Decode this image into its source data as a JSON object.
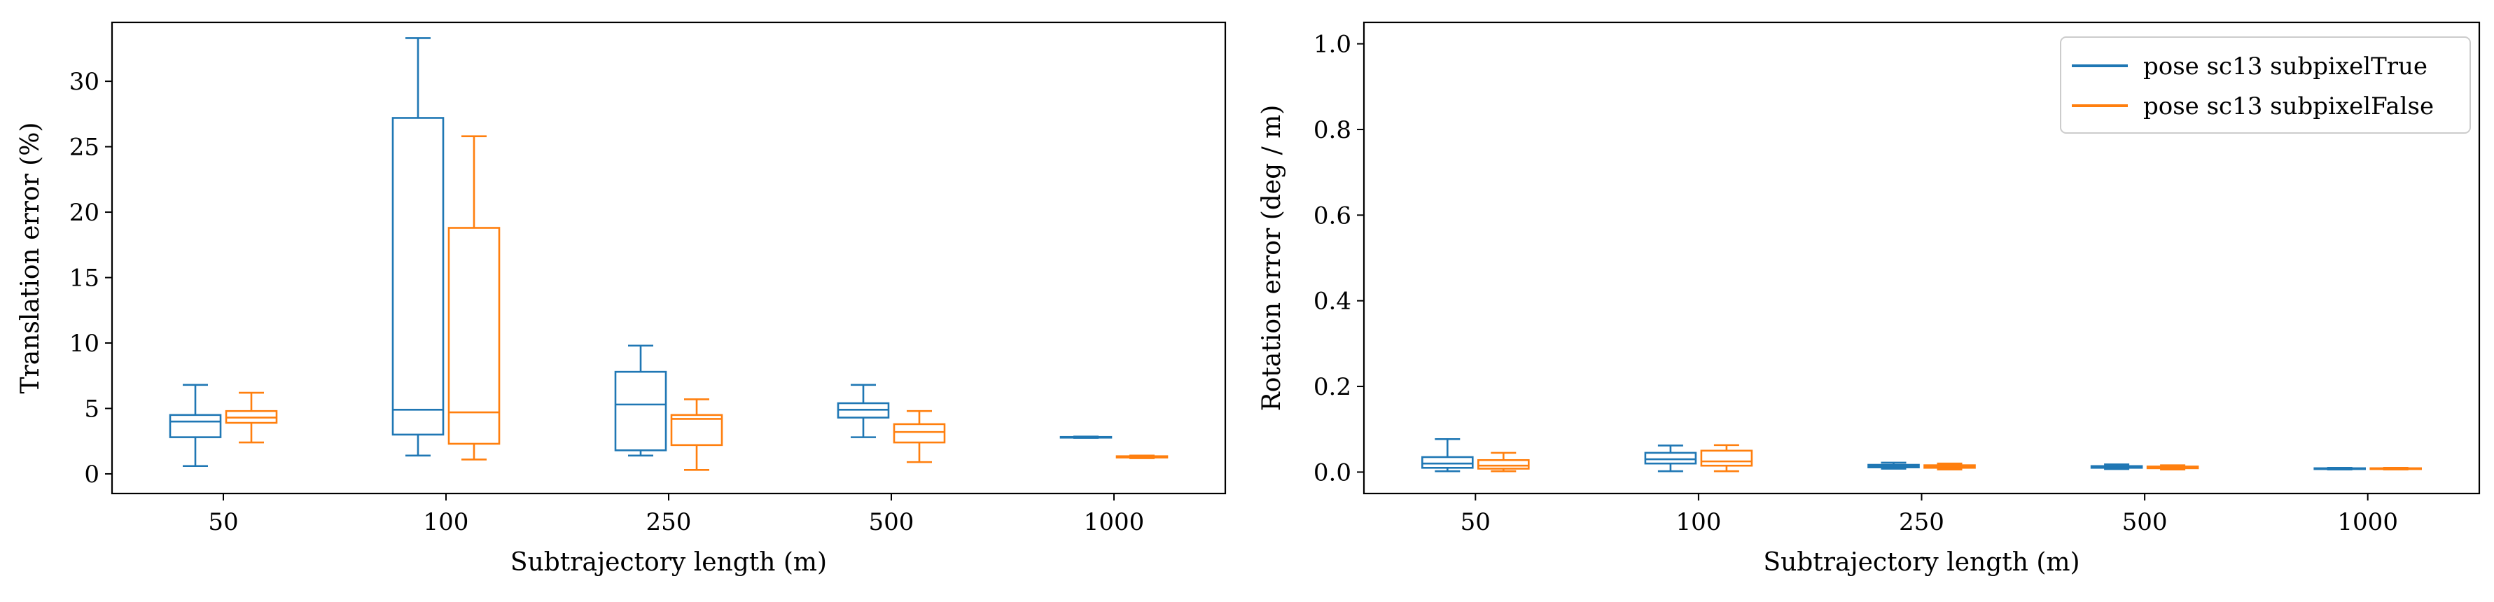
{
  "chart_data": [
    {
      "type": "box",
      "xlabel": "Subtrajectory length (m)",
      "ylabel": "Translation error (%)",
      "ylim": [
        -1.5,
        34.5
      ],
      "yticks": [
        0,
        5,
        10,
        15,
        20,
        25,
        30
      ],
      "categories": [
        "50",
        "100",
        "250",
        "500",
        "1000"
      ],
      "series": [
        {
          "name": "pose sc13 subpixelTrue",
          "color": "#1f77b4",
          "boxes": [
            {
              "whislo": 0.6,
              "q1": 2.8,
              "med": 4.0,
              "q3": 4.5,
              "whishi": 6.8
            },
            {
              "whislo": 1.4,
              "q1": 3.0,
              "med": 4.9,
              "q3": 27.2,
              "whishi": 33.3
            },
            {
              "whislo": 1.4,
              "q1": 1.8,
              "med": 5.3,
              "q3": 7.8,
              "whishi": 9.8
            },
            {
              "whislo": 2.8,
              "q1": 4.3,
              "med": 4.9,
              "q3": 5.4,
              "whishi": 6.8
            },
            {
              "whislo": 2.75,
              "q1": 2.78,
              "med": 2.8,
              "q3": 2.82,
              "whishi": 2.85
            }
          ]
        },
        {
          "name": "pose sc13 subpixelFalse",
          "color": "#ff7f0e",
          "boxes": [
            {
              "whislo": 2.4,
              "q1": 3.9,
              "med": 4.3,
              "q3": 4.8,
              "whishi": 6.2
            },
            {
              "whislo": 1.1,
              "q1": 2.3,
              "med": 4.7,
              "q3": 18.8,
              "whishi": 25.8
            },
            {
              "whislo": 0.3,
              "q1": 2.2,
              "med": 4.2,
              "q3": 4.5,
              "whishi": 5.7
            },
            {
              "whislo": 0.9,
              "q1": 2.4,
              "med": 3.2,
              "q3": 3.8,
              "whishi": 4.8
            },
            {
              "whislo": 1.2,
              "q1": 1.25,
              "med": 1.3,
              "q3": 1.35,
              "whishi": 1.4
            }
          ]
        }
      ]
    },
    {
      "type": "box",
      "xlabel": "Subtrajectory length (m)",
      "ylabel": "Rotation error (deg / m)",
      "ylim": [
        -0.05,
        1.05
      ],
      "yticks": [
        0.0,
        0.2,
        0.4,
        0.6,
        0.8,
        1.0
      ],
      "categories": [
        "50",
        "100",
        "250",
        "500",
        "1000"
      ],
      "legend": {
        "placement": "top-right",
        "entries": [
          "pose sc13 subpixelTrue",
          "pose sc13 subpixelFalse"
        ]
      },
      "series": [
        {
          "name": "pose sc13 subpixelTrue",
          "color": "#1f77b4",
          "boxes": [
            {
              "whislo": 0.002,
              "q1": 0.01,
              "med": 0.02,
              "q3": 0.035,
              "whishi": 0.077
            },
            {
              "whislo": 0.002,
              "q1": 0.02,
              "med": 0.03,
              "q3": 0.045,
              "whishi": 0.062
            },
            {
              "whislo": 0.008,
              "q1": 0.011,
              "med": 0.014,
              "q3": 0.017,
              "whishi": 0.022
            },
            {
              "whislo": 0.007,
              "q1": 0.01,
              "med": 0.012,
              "q3": 0.014,
              "whishi": 0.018
            },
            {
              "whislo": 0.006,
              "q1": 0.007,
              "med": 0.008,
              "q3": 0.009,
              "whishi": 0.01
            }
          ]
        },
        {
          "name": "pose sc13 subpixelFalse",
          "color": "#ff7f0e",
          "boxes": [
            {
              "whislo": 0.002,
              "q1": 0.008,
              "med": 0.015,
              "q3": 0.028,
              "whishi": 0.045
            },
            {
              "whislo": 0.002,
              "q1": 0.015,
              "med": 0.025,
              "q3": 0.05,
              "whishi": 0.063
            },
            {
              "whislo": 0.006,
              "q1": 0.01,
              "med": 0.013,
              "q3": 0.016,
              "whishi": 0.02
            },
            {
              "whislo": 0.006,
              "q1": 0.009,
              "med": 0.011,
              "q3": 0.013,
              "whishi": 0.016
            },
            {
              "whislo": 0.006,
              "q1": 0.007,
              "med": 0.008,
              "q3": 0.009,
              "whishi": 0.01
            }
          ]
        }
      ]
    }
  ]
}
